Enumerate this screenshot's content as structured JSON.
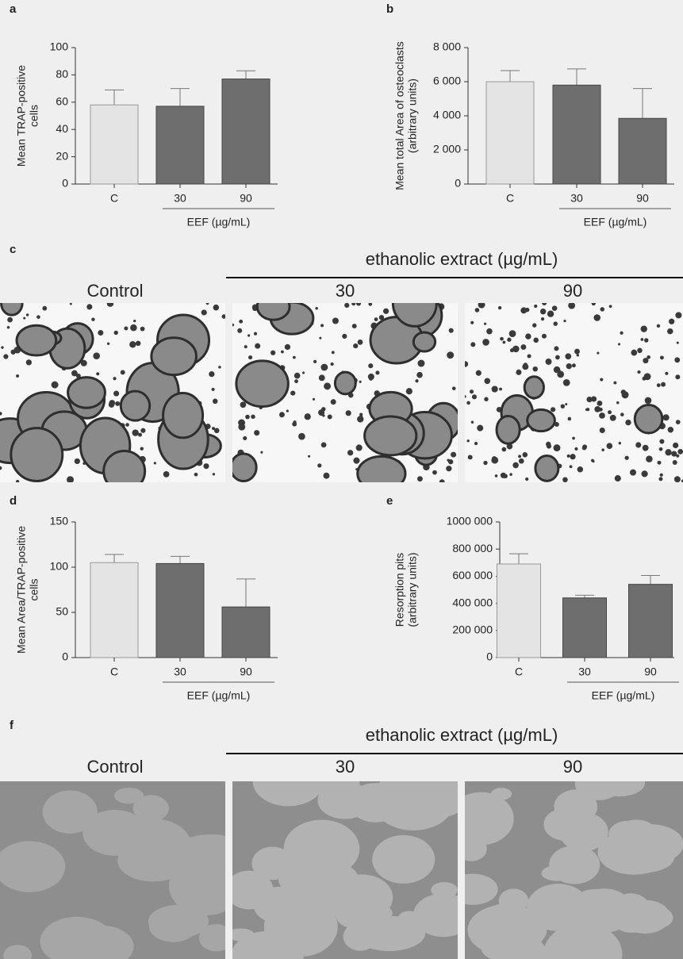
{
  "chart_data": [
    {
      "type": "bar",
      "panel_label": "a",
      "ylabel": [
        "Mean TRAP-positive",
        "cells"
      ],
      "categories": [
        "C",
        "30",
        "90"
      ],
      "group_label": "EEF (µg/mL)",
      "values": [
        58,
        57,
        77
      ],
      "errors": [
        11,
        13,
        6
      ],
      "colors": [
        "#e4e4e4",
        "#6e6e6e",
        "#6e6e6e"
      ],
      "ylim": [
        0,
        100
      ],
      "yticks": [
        0,
        20,
        40,
        60,
        80,
        100
      ]
    },
    {
      "type": "bar",
      "panel_label": "b",
      "ylabel": [
        "Mean total Area of osteoclasts",
        "(arbitrary units)"
      ],
      "categories": [
        "C",
        "30",
        "90"
      ],
      "group_label": "EEF (µg/mL)",
      "values": [
        6000,
        5800,
        3850
      ],
      "errors": [
        650,
        950,
        1750
      ],
      "colors": [
        "#e4e4e4",
        "#6e6e6e",
        "#6e6e6e"
      ],
      "ylim": [
        0,
        8000
      ],
      "yticks": [
        0,
        {
          "value": 2000,
          "label": "2 000"
        },
        {
          "value": 4000,
          "label": "4 000"
        },
        {
          "value": 6000,
          "label": "6 000"
        },
        {
          "value": 8000,
          "label": "8 000"
        }
      ]
    },
    {
      "type": "bar",
      "panel_label": "d",
      "ylabel": [
        "Mean Area/TRAP-positive",
        "cells"
      ],
      "categories": [
        "C",
        "30",
        "90"
      ],
      "group_label": "EEF (µg/mL)",
      "values": [
        105,
        104,
        56
      ],
      "errors": [
        9,
        8,
        31
      ],
      "colors": [
        "#e4e4e4",
        "#6e6e6e",
        "#6e6e6e"
      ],
      "ylim": [
        0,
        150
      ],
      "yticks": [
        0,
        50,
        100,
        150
      ]
    },
    {
      "type": "bar",
      "panel_label": "e",
      "ylabel": [
        "Resorption pits",
        "(arbitrary units)"
      ],
      "categories": [
        "C",
        "30",
        "90"
      ],
      "group_label": "EEF (µg/mL)",
      "values": [
        690000,
        440000,
        540000
      ],
      "errors": [
        75000,
        20000,
        65000
      ],
      "colors": [
        "#e4e4e4",
        "#6e6e6e",
        "#6e6e6e"
      ],
      "ylim": [
        0,
        1000000
      ],
      "yticks": [
        0,
        {
          "value": 200000,
          "label": "200 000"
        },
        {
          "value": 400000,
          "label": "400 000"
        },
        {
          "value": 600000,
          "label": "600 000"
        },
        {
          "value": 800000,
          "label": "800 000"
        },
        {
          "value": 1000000,
          "label": "1000 000"
        }
      ]
    }
  ],
  "image_panels": [
    {
      "panel_label": "c",
      "header": "ethanolic extract (µg/mL)",
      "columns": [
        "Control",
        "30",
        "90"
      ]
    },
    {
      "panel_label": "f",
      "header": "ethanolic extract (µg/mL)",
      "columns": [
        "Control",
        "30",
        "90"
      ]
    }
  ]
}
